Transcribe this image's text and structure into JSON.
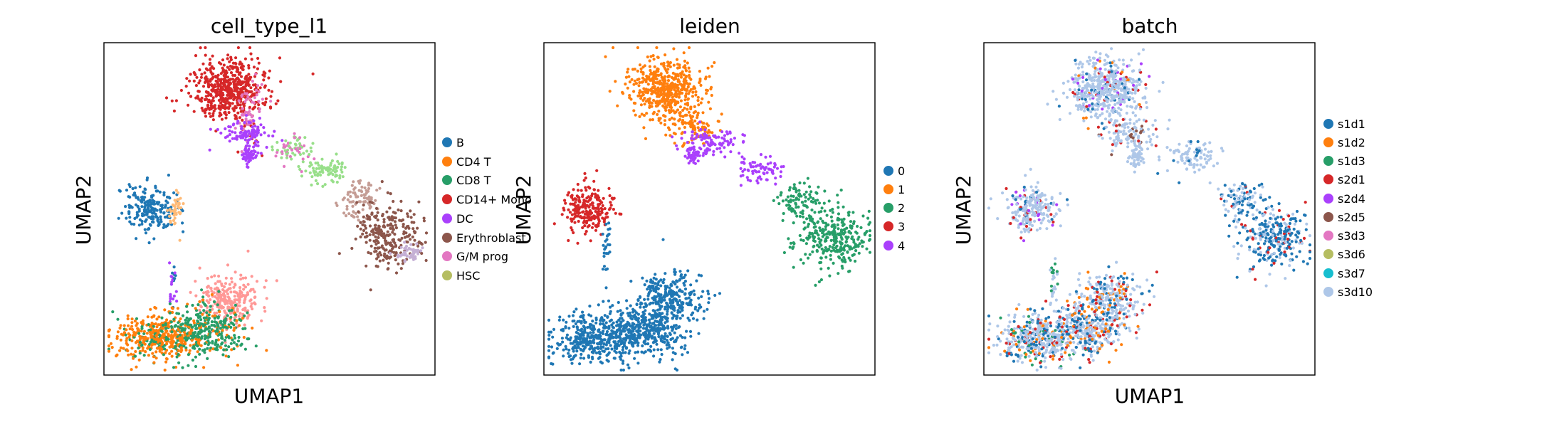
{
  "chart_data": [
    {
      "type": "scatter",
      "title": "cell_type_l1",
      "xlabel": "UMAP1",
      "ylabel": "UMAP2",
      "legend_placement": "right-outside",
      "legend": [
        {
          "name": "B",
          "color": "#1f77b4"
        },
        {
          "name": "CD4 T",
          "color": "#ff7f0e"
        },
        {
          "name": "CD8 T",
          "color": "#279e68"
        },
        {
          "name": "CD14+ Mono",
          "color": "#d62728"
        },
        {
          "name": "DC",
          "color": "#aa40fc"
        },
        {
          "name": "Erythroblast",
          "color": "#8c564b"
        },
        {
          "name": "G/M prog",
          "color": "#e377c2"
        },
        {
          "name": "HSC",
          "color": "#b5bd61"
        }
      ],
      "extra_colors": [
        "#ff9896",
        "#98df8a",
        "#c49c94",
        "#c5b0d5",
        "#aec7e8"
      ],
      "clusters": [
        {
          "cx": 0.37,
          "cy": 0.14,
          "sx": 0.055,
          "sy": 0.045,
          "n": 520,
          "colors": [
            "#d62728"
          ],
          "w": [
            1
          ]
        },
        {
          "cx": 0.44,
          "cy": 0.22,
          "sx": 0.02,
          "sy": 0.05,
          "n": 90,
          "colors": [
            "#e377c2",
            "#d62728"
          ],
          "w": [
            0.7,
            0.3
          ]
        },
        {
          "cx": 0.43,
          "cy": 0.27,
          "sx": 0.035,
          "sy": 0.02,
          "n": 90,
          "colors": [
            "#aa40fc"
          ],
          "w": [
            1
          ]
        },
        {
          "cx": 0.44,
          "cy": 0.335,
          "sx": 0.012,
          "sy": 0.015,
          "n": 60,
          "colors": [
            "#aa40fc"
          ],
          "w": [
            1
          ]
        },
        {
          "cx": 0.58,
          "cy": 0.32,
          "sx": 0.03,
          "sy": 0.02,
          "n": 70,
          "colors": [
            "#e377c2",
            "#98df8a"
          ],
          "w": [
            0.4,
            0.6
          ]
        },
        {
          "cx": 0.67,
          "cy": 0.39,
          "sx": 0.04,
          "sy": 0.02,
          "n": 80,
          "colors": [
            "#98df8a"
          ],
          "w": [
            1
          ]
        },
        {
          "cx": 0.77,
          "cy": 0.47,
          "sx": 0.03,
          "sy": 0.03,
          "n": 80,
          "colors": [
            "#c49c94"
          ],
          "w": [
            1
          ]
        },
        {
          "cx": 0.86,
          "cy": 0.58,
          "sx": 0.05,
          "sy": 0.05,
          "n": 260,
          "colors": [
            "#8c564b"
          ],
          "w": [
            1
          ]
        },
        {
          "cx": 0.92,
          "cy": 0.63,
          "sx": 0.018,
          "sy": 0.014,
          "n": 50,
          "colors": [
            "#c5b0d5"
          ],
          "w": [
            1
          ]
        },
        {
          "cx": 0.14,
          "cy": 0.5,
          "sx": 0.04,
          "sy": 0.035,
          "n": 210,
          "colors": [
            "#1f77b4"
          ],
          "w": [
            1
          ]
        },
        {
          "cx": 0.22,
          "cy": 0.5,
          "sx": 0.012,
          "sy": 0.025,
          "n": 40,
          "colors": [
            "#ffbb78"
          ],
          "w": [
            1
          ]
        },
        {
          "cx": 0.21,
          "cy": 0.72,
          "sx": 0.006,
          "sy": 0.04,
          "n": 25,
          "colors": [
            "#aa40fc",
            "#1f77b4"
          ],
          "w": [
            0.5,
            0.5
          ]
        },
        {
          "cx": 0.38,
          "cy": 0.77,
          "sx": 0.045,
          "sy": 0.04,
          "n": 250,
          "colors": [
            "#ff9896"
          ],
          "w": [
            1
          ]
        },
        {
          "cx": 0.16,
          "cy": 0.89,
          "sx": 0.065,
          "sy": 0.035,
          "n": 420,
          "colors": [
            "#ff7f0e",
            "#279e68"
          ],
          "w": [
            0.8,
            0.2
          ]
        },
        {
          "cx": 0.31,
          "cy": 0.86,
          "sx": 0.06,
          "sy": 0.04,
          "n": 340,
          "colors": [
            "#279e68",
            "#ff7f0e"
          ],
          "w": [
            0.8,
            0.2
          ]
        }
      ]
    },
    {
      "type": "scatter",
      "title": "leiden",
      "xlabel": "",
      "ylabel": "UMAP2",
      "legend_placement": "right-outside",
      "legend": [
        {
          "name": "0",
          "color": "#1f77b4"
        },
        {
          "name": "1",
          "color": "#ff7f0e"
        },
        {
          "name": "2",
          "color": "#279e68"
        },
        {
          "name": "3",
          "color": "#d62728"
        },
        {
          "name": "4",
          "color": "#aa40fc"
        }
      ],
      "clusters": [
        {
          "cx": 0.37,
          "cy": 0.14,
          "sx": 0.055,
          "sy": 0.045,
          "n": 520,
          "colors": [
            "#ff7f0e"
          ],
          "w": [
            1
          ]
        },
        {
          "cx": 0.46,
          "cy": 0.26,
          "sx": 0.04,
          "sy": 0.025,
          "n": 90,
          "colors": [
            "#ff7f0e"
          ],
          "w": [
            1
          ]
        },
        {
          "cx": 0.5,
          "cy": 0.3,
          "sx": 0.04,
          "sy": 0.02,
          "n": 100,
          "colors": [
            "#aa40fc"
          ],
          "w": [
            1
          ]
        },
        {
          "cx": 0.45,
          "cy": 0.335,
          "sx": 0.012,
          "sy": 0.015,
          "n": 50,
          "colors": [
            "#aa40fc"
          ],
          "w": [
            1
          ]
        },
        {
          "cx": 0.65,
          "cy": 0.38,
          "sx": 0.04,
          "sy": 0.02,
          "n": 70,
          "colors": [
            "#aa40fc"
          ],
          "w": [
            1
          ]
        },
        {
          "cx": 0.77,
          "cy": 0.47,
          "sx": 0.03,
          "sy": 0.03,
          "n": 90,
          "colors": [
            "#279e68"
          ],
          "w": [
            1
          ]
        },
        {
          "cx": 0.87,
          "cy": 0.59,
          "sx": 0.055,
          "sy": 0.05,
          "n": 300,
          "colors": [
            "#279e68"
          ],
          "w": [
            1
          ]
        },
        {
          "cx": 0.14,
          "cy": 0.5,
          "sx": 0.04,
          "sy": 0.035,
          "n": 230,
          "colors": [
            "#d62728"
          ],
          "w": [
            1
          ]
        },
        {
          "cx": 0.19,
          "cy": 0.62,
          "sx": 0.006,
          "sy": 0.04,
          "n": 25,
          "colors": [
            "#1f77b4"
          ],
          "w": [
            1
          ]
        },
        {
          "cx": 0.38,
          "cy": 0.77,
          "sx": 0.05,
          "sy": 0.04,
          "n": 280,
          "colors": [
            "#1f77b4"
          ],
          "w": [
            1
          ]
        },
        {
          "cx": 0.16,
          "cy": 0.89,
          "sx": 0.065,
          "sy": 0.035,
          "n": 420,
          "colors": [
            "#1f77b4"
          ],
          "w": [
            1
          ]
        },
        {
          "cx": 0.31,
          "cy": 0.86,
          "sx": 0.06,
          "sy": 0.04,
          "n": 340,
          "colors": [
            "#1f77b4"
          ],
          "w": [
            1
          ]
        }
      ]
    },
    {
      "type": "scatter",
      "title": "batch",
      "xlabel": "UMAP1",
      "ylabel": "UMAP2",
      "legend_placement": "right-outside",
      "legend": [
        {
          "name": "s1d1",
          "color": "#1f77b4"
        },
        {
          "name": "s1d2",
          "color": "#ff7f0e"
        },
        {
          "name": "s1d3",
          "color": "#279e68"
        },
        {
          "name": "s2d1",
          "color": "#d62728"
        },
        {
          "name": "s2d4",
          "color": "#aa40fc"
        },
        {
          "name": "s2d5",
          "color": "#8c564b"
        },
        {
          "name": "s3d3",
          "color": "#e377c2"
        },
        {
          "name": "s3d6",
          "color": "#b5bd61"
        },
        {
          "name": "s3d7",
          "color": "#17becf"
        },
        {
          "name": "s3d10",
          "color": "#aec7e8"
        }
      ],
      "clusters": [
        {
          "cx": 0.37,
          "cy": 0.14,
          "sx": 0.055,
          "sy": 0.045,
          "n": 520,
          "colors": [
            "#aec7e8",
            "#1f77b4",
            "#aa40fc",
            "#d62728",
            "#ff7f0e"
          ],
          "w": [
            0.8,
            0.08,
            0.05,
            0.04,
            0.03
          ]
        },
        {
          "cx": 0.44,
          "cy": 0.27,
          "sx": 0.04,
          "sy": 0.03,
          "n": 120,
          "colors": [
            "#aec7e8",
            "#8c564b",
            "#d62728"
          ],
          "w": [
            0.8,
            0.1,
            0.1
          ]
        },
        {
          "cx": 0.46,
          "cy": 0.34,
          "sx": 0.012,
          "sy": 0.015,
          "n": 50,
          "colors": [
            "#aec7e8"
          ],
          "w": [
            1
          ]
        },
        {
          "cx": 0.63,
          "cy": 0.34,
          "sx": 0.04,
          "sy": 0.025,
          "n": 90,
          "colors": [
            "#aec7e8",
            "#1f77b4"
          ],
          "w": [
            0.85,
            0.15
          ]
        },
        {
          "cx": 0.77,
          "cy": 0.47,
          "sx": 0.03,
          "sy": 0.03,
          "n": 90,
          "colors": [
            "#1f77b4",
            "#aec7e8",
            "#d62728"
          ],
          "w": [
            0.5,
            0.4,
            0.1
          ]
        },
        {
          "cx": 0.87,
          "cy": 0.59,
          "sx": 0.055,
          "sy": 0.05,
          "n": 300,
          "colors": [
            "#1f77b4",
            "#aec7e8",
            "#d62728"
          ],
          "w": [
            0.6,
            0.3,
            0.1
          ]
        },
        {
          "cx": 0.14,
          "cy": 0.5,
          "sx": 0.04,
          "sy": 0.035,
          "n": 230,
          "colors": [
            "#aec7e8",
            "#d62728",
            "#aa40fc",
            "#1f77b4"
          ],
          "w": [
            0.75,
            0.1,
            0.08,
            0.07
          ]
        },
        {
          "cx": 0.21,
          "cy": 0.72,
          "sx": 0.006,
          "sy": 0.04,
          "n": 25,
          "colors": [
            "#aec7e8",
            "#279e68"
          ],
          "w": [
            0.6,
            0.4
          ]
        },
        {
          "cx": 0.38,
          "cy": 0.77,
          "sx": 0.05,
          "sy": 0.04,
          "n": 280,
          "colors": [
            "#aec7e8",
            "#1f77b4",
            "#ff7f0e",
            "#d62728"
          ],
          "w": [
            0.6,
            0.2,
            0.1,
            0.1
          ]
        },
        {
          "cx": 0.16,
          "cy": 0.89,
          "sx": 0.065,
          "sy": 0.035,
          "n": 420,
          "colors": [
            "#aec7e8",
            "#1f77b4",
            "#ff7f0e",
            "#d62728",
            "#279e68"
          ],
          "w": [
            0.55,
            0.2,
            0.1,
            0.08,
            0.07
          ]
        },
        {
          "cx": 0.31,
          "cy": 0.86,
          "sx": 0.06,
          "sy": 0.04,
          "n": 340,
          "colors": [
            "#aec7e8",
            "#1f77b4",
            "#ff7f0e",
            "#d62728"
          ],
          "w": [
            0.55,
            0.25,
            0.12,
            0.08
          ]
        }
      ]
    }
  ]
}
